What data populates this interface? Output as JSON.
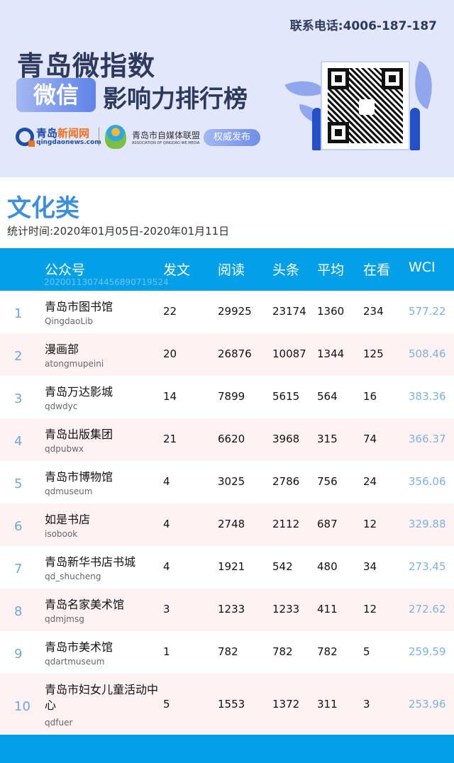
{
  "banner": {
    "phone": "联系电话:4006-187-187",
    "title_line1": "青岛微指数",
    "badge": "微信",
    "title_line2": "影响力排行榜",
    "logo1_name_a": "青岛",
    "logo1_name_b": "新闻网",
    "logo1_domain": "qingdaonews.com",
    "logo2_name": "青岛市自媒体联盟",
    "logo2_en": "ASSOCIATION OF QINGDAO WE MEDIA",
    "auth": "权威发布"
  },
  "category": "文化类",
  "period": "统计时间:2020年01月05日-2020年01月11日",
  "table": {
    "headers": [
      "公众号",
      "发文",
      "阅读",
      "头条",
      "平均",
      "在看",
      "WCI"
    ],
    "code": "20200113074456890719524",
    "rows": [
      {
        "rank": "1",
        "name": "青岛市图书馆",
        "id": "QingdaoLib",
        "posts": "22",
        "reads": "29925",
        "top": "23174",
        "avg": "1360",
        "looks": "234",
        "wci": "577.22"
      },
      {
        "rank": "2",
        "name": "漫画部",
        "id": "atongmupeini",
        "posts": "20",
        "reads": "26876",
        "top": "10087",
        "avg": "1344",
        "looks": "125",
        "wci": "508.46"
      },
      {
        "rank": "3",
        "name": "青岛万达影城",
        "id": "qdwdyc",
        "posts": "14",
        "reads": "7899",
        "top": "5615",
        "avg": "564",
        "looks": "16",
        "wci": "383.36"
      },
      {
        "rank": "4",
        "name": "青岛出版集团",
        "id": "qdpubwx",
        "posts": "21",
        "reads": "6620",
        "top": "3968",
        "avg": "315",
        "looks": "74",
        "wci": "366.37"
      },
      {
        "rank": "5",
        "name": "青岛市博物馆",
        "id": "qdmuseum",
        "posts": "4",
        "reads": "3025",
        "top": "2786",
        "avg": "756",
        "looks": "24",
        "wci": "356.06"
      },
      {
        "rank": "6",
        "name": "如是书店",
        "id": "isobook",
        "posts": "4",
        "reads": "2748",
        "top": "2112",
        "avg": "687",
        "looks": "12",
        "wci": "329.88"
      },
      {
        "rank": "7",
        "name": "青岛新华书店书城",
        "id": "qd_shucheng",
        "posts": "4",
        "reads": "1921",
        "top": "542",
        "avg": "480",
        "looks": "34",
        "wci": "273.45"
      },
      {
        "rank": "8",
        "name": "青岛名家美术馆",
        "id": "qdmjmsg",
        "posts": "3",
        "reads": "1233",
        "top": "1233",
        "avg": "411",
        "looks": "12",
        "wci": "272.62"
      },
      {
        "rank": "9",
        "name": "青岛市美术馆",
        "id": "qdartmuseum",
        "posts": "1",
        "reads": "782",
        "top": "782",
        "avg": "782",
        "looks": "5",
        "wci": "259.59"
      },
      {
        "rank": "10",
        "name": "青岛市妇女儿童活动中心",
        "id": "qdfuer",
        "posts": "5",
        "reads": "1553",
        "top": "1372",
        "avg": "311",
        "looks": "3",
        "wci": "253.96"
      }
    ]
  },
  "colors": {
    "header_blue": "#03a0e8",
    "title_blue": "#3d8fdc",
    "wci": "#7fb2e0",
    "alt_row": "#fdf1f2"
  }
}
